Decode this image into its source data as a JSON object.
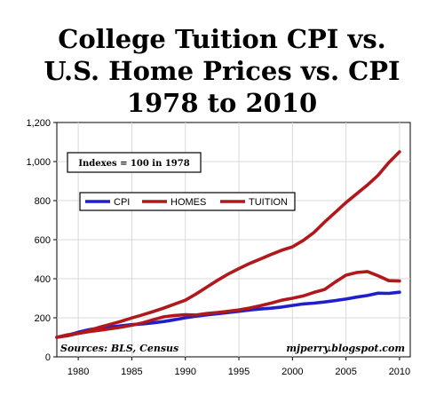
{
  "title_lines": [
    "College Tuition CPI vs.",
    "U.S. Home Prices vs. CPI",
    "1978 to 2010"
  ],
  "chart_data": {
    "type": "line",
    "title": "College Tuition CPI vs. U.S. Home Prices vs. CPI 1978 to 2010",
    "xlabel": "",
    "ylabel": "",
    "xlim": [
      1978,
      2011
    ],
    "ylim": [
      0,
      1200
    ],
    "x_ticks": [
      1980,
      1985,
      1990,
      1995,
      2000,
      2005,
      2010
    ],
    "y_ticks": [
      0,
      200,
      400,
      600,
      800,
      1000,
      1200
    ],
    "y_tick_labels": [
      "0",
      "200",
      "400",
      "600",
      "800",
      "1,000",
      "1,200"
    ],
    "grid": true,
    "legend_position": "upper-left",
    "annotation_box": "Indexes = 100 in 1978",
    "source_note": "Sources: BLS, Census",
    "credit_note": "mjperry.blogspot.com",
    "x": [
      1978,
      1979,
      1980,
      1981,
      1982,
      1983,
      1984,
      1985,
      1986,
      1987,
      1988,
      1989,
      1990,
      1991,
      1992,
      1993,
      1994,
      1995,
      1996,
      1997,
      1998,
      1999,
      2000,
      2001,
      2002,
      2003,
      2004,
      2005,
      2006,
      2007,
      2008,
      2009,
      2010
    ],
    "series": [
      {
        "name": "CPI",
        "color": "#1f1fcc",
        "values": [
          100,
          111,
          126,
          139,
          148,
          153,
          159,
          165,
          168,
          174,
          181,
          190,
          200,
          208,
          215,
          221,
          227,
          233,
          240,
          245,
          249,
          255,
          263,
          271,
          275,
          281,
          288,
          296,
          306,
          314,
          326,
          325,
          331
        ]
      },
      {
        "name": "HOMES",
        "color": "#b0181c",
        "values": [
          100,
          113,
          120,
          129,
          136,
          144,
          152,
          162,
          174,
          190,
          205,
          212,
          216,
          214,
          222,
          227,
          233,
          240,
          250,
          262,
          275,
          290,
          300,
          312,
          330,
          345,
          383,
          418,
          432,
          437,
          415,
          390,
          388
        ]
      },
      {
        "name": "TUITION",
        "color": "#b0181c",
        "values": [
          100,
          108,
          120,
          134,
          152,
          167,
          182,
          199,
          215,
          232,
          250,
          270,
          290,
          322,
          357,
          392,
          424,
          452,
          478,
          501,
          524,
          546,
          563,
          596,
          637,
          690,
          740,
          790,
          835,
          880,
          930,
          995,
          1050
        ]
      }
    ]
  }
}
